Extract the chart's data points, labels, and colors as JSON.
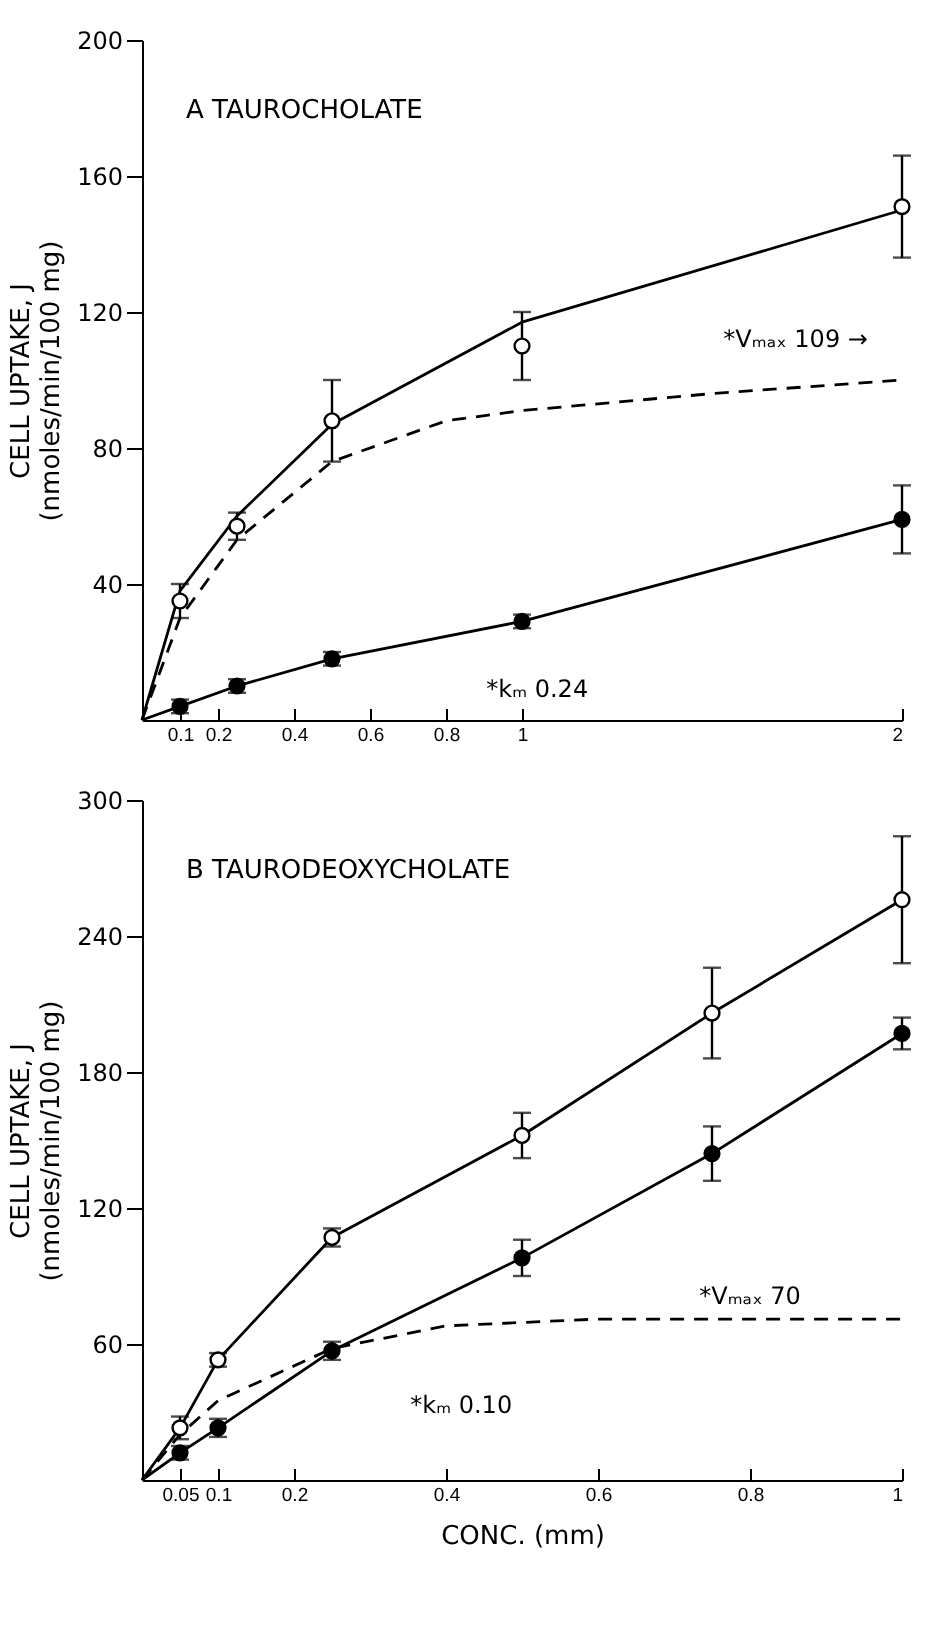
{
  "chart_data": [
    {
      "type": "scatter",
      "title": "A   TAUROCHOLATE",
      "ylabel": "CELL UPTAKE, J\n(nmoles/min/100 mg)",
      "xlim": [
        0,
        2
      ],
      "xticks": [
        0.1,
        0.2,
        0.4,
        0.6,
        0.8,
        1,
        2
      ],
      "ylim": [
        0,
        200
      ],
      "yticks": [
        40,
        80,
        120,
        160,
        200
      ],
      "grid": false,
      "annotations": [
        "*Vₘₐₓ 109 →",
        "*kₘ 0.24"
      ],
      "series": [
        {
          "type": "line",
          "color": "#000000",
          "line_style": "solid",
          "marker": "none",
          "x": [
            0,
            0.1,
            0.25,
            0.5,
            1,
            2
          ],
          "values": [
            0,
            38,
            60,
            87,
            117,
            150
          ]
        },
        {
          "type": "line",
          "color": "#000000",
          "line_style": "dashed",
          "marker": "none",
          "x": [
            0,
            0.1,
            0.25,
            0.5,
            0.8,
            1,
            1.5,
            2
          ],
          "values": [
            0,
            30,
            53,
            76,
            88,
            91,
            96,
            100
          ]
        },
        {
          "type": "line",
          "color": "#000000",
          "line_style": "solid",
          "marker": "none",
          "x": [
            0,
            0.1,
            0.25,
            0.5,
            1,
            2
          ],
          "values": [
            0,
            4,
            10,
            18,
            29,
            59
          ]
        },
        {
          "type": "scatter",
          "color": "#ffffff",
          "marker": "circle",
          "x": [
            0.1,
            0.25,
            0.5,
            1,
            2
          ],
          "values": [
            35,
            57,
            88,
            110,
            151
          ],
          "errors": [
            5,
            4,
            12,
            10,
            15
          ]
        },
        {
          "type": "scatter",
          "color": "#000000",
          "marker": "circle",
          "x": [
            0.1,
            0.25,
            0.5,
            1,
            2
          ],
          "values": [
            4,
            10,
            18,
            29,
            59
          ],
          "errors": [
            2,
            2,
            2,
            2,
            10
          ]
        }
      ]
    },
    {
      "type": "scatter",
      "title": "B   TAURODEOXYCHOLATE",
      "xlabel": "CONC. (mm)",
      "ylabel": "CELL UPTAKE, J\n(nmoles/min/100 mg)",
      "xlim": [
        0,
        1
      ],
      "xticks": [
        0.05,
        0.1,
        0.2,
        0.4,
        0.6,
        0.8,
        1
      ],
      "ylim": [
        0,
        300
      ],
      "yticks": [
        60,
        120,
        180,
        240,
        300
      ],
      "grid": false,
      "annotations": [
        "*Vₘₐₓ 70",
        "*kₘ 0.10"
      ],
      "series": [
        {
          "type": "line",
          "color": "#000000",
          "line_style": "solid",
          "marker": "none",
          "x": [
            0,
            0.05,
            0.1,
            0.25,
            0.5,
            0.75,
            1
          ],
          "values": [
            0,
            23,
            53,
            107,
            152,
            206,
            256
          ]
        },
        {
          "type": "line",
          "color": "#000000",
          "line_style": "solid",
          "marker": "none",
          "x": [
            0,
            0.05,
            0.1,
            0.25,
            0.5,
            0.75,
            1
          ],
          "values": [
            0,
            12,
            23,
            57,
            98,
            144,
            197
          ]
        },
        {
          "type": "line",
          "color": "#000000",
          "line_style": "dashed",
          "marker": "none",
          "x": [
            0,
            0.05,
            0.1,
            0.25,
            0.4,
            0.6,
            1
          ],
          "values": [
            0,
            20,
            35,
            58,
            68,
            71,
            71
          ]
        },
        {
          "type": "scatter",
          "color": "#ffffff",
          "marker": "circle",
          "x": [
            0.05,
            0.1,
            0.25,
            0.5,
            0.75,
            1
          ],
          "values": [
            23,
            53,
            107,
            152,
            206,
            256
          ],
          "errors": [
            5,
            3,
            4,
            10,
            20,
            28
          ]
        },
        {
          "type": "scatter",
          "color": "#000000",
          "marker": "circle",
          "x": [
            0.05,
            0.1,
            0.25,
            0.5,
            0.75,
            1
          ],
          "values": [
            12,
            23,
            57,
            98,
            144,
            197
          ],
          "errors": [
            3,
            4,
            4,
            8,
            12,
            7
          ]
        }
      ]
    }
  ]
}
